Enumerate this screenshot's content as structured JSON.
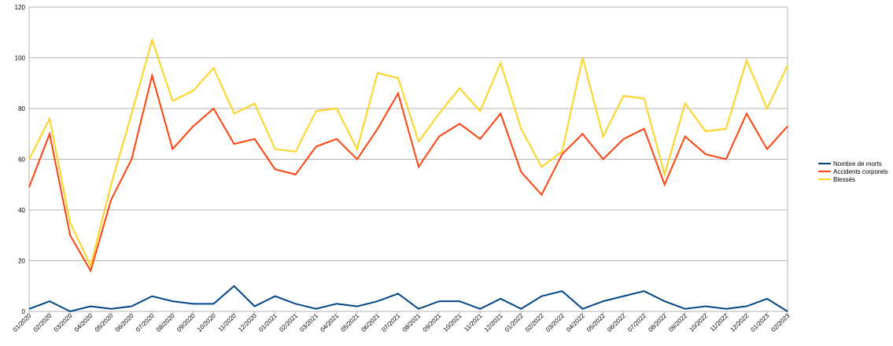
{
  "chart_data": {
    "type": "line",
    "title": "",
    "xlabel": "",
    "ylabel": "",
    "ylim": [
      0,
      120
    ],
    "yticks": [
      0,
      20,
      40,
      60,
      80,
      100,
      120
    ],
    "grid": true,
    "legend_position": "right",
    "categories": [
      "01/2020",
      "02/2020",
      "03/2020",
      "04/2020",
      "05/2020",
      "06/2020",
      "07/2020",
      "08/2020",
      "09/2020",
      "10/2020",
      "11/2020",
      "12/2020",
      "01/2021",
      "02/2021",
      "03/2021",
      "04/2021",
      "05/2021",
      "06/2021",
      "07/2021",
      "08/2021",
      "09/2021",
      "10/2021",
      "11/2021",
      "12/2021",
      "01/2022",
      "02/2022",
      "03/2022",
      "04/2022",
      "05/2022",
      "06/2022",
      "07/2022",
      "08/2022",
      "09/2022",
      "10/2022",
      "11/2022",
      "12/2022",
      "01/2023",
      "02/2023"
    ],
    "series": [
      {
        "name": "Nombre de morts",
        "color": "#004586",
        "values": [
          1,
          4,
          0,
          2,
          1,
          2,
          6,
          4,
          3,
          3,
          10,
          2,
          6,
          3,
          1,
          3,
          2,
          4,
          7,
          1,
          4,
          4,
          1,
          5,
          1,
          6,
          8,
          1,
          4,
          6,
          8,
          4,
          1,
          2,
          1,
          2,
          5,
          0
        ]
      },
      {
        "name": "Accidents corporels",
        "color": "#ff420e",
        "values": [
          49,
          70,
          30,
          16,
          44,
          60,
          93,
          64,
          73,
          80,
          66,
          68,
          56,
          54,
          65,
          68,
          60,
          72,
          86,
          57,
          69,
          74,
          68,
          78,
          55,
          46,
          62,
          70,
          60,
          68,
          72,
          50,
          69,
          62,
          60,
          78,
          64,
          73
        ]
      },
      {
        "name": "Blessés",
        "color": "#ffd320",
        "values": [
          60,
          76,
          35,
          18,
          50,
          78,
          107,
          83,
          87,
          96,
          78,
          82,
          64,
          63,
          79,
          80,
          64,
          94,
          92,
          67,
          78,
          88,
          79,
          98,
          72,
          57,
          63,
          100,
          69,
          85,
          84,
          54,
          82,
          71,
          72,
          99,
          80,
          97
        ]
      }
    ]
  }
}
